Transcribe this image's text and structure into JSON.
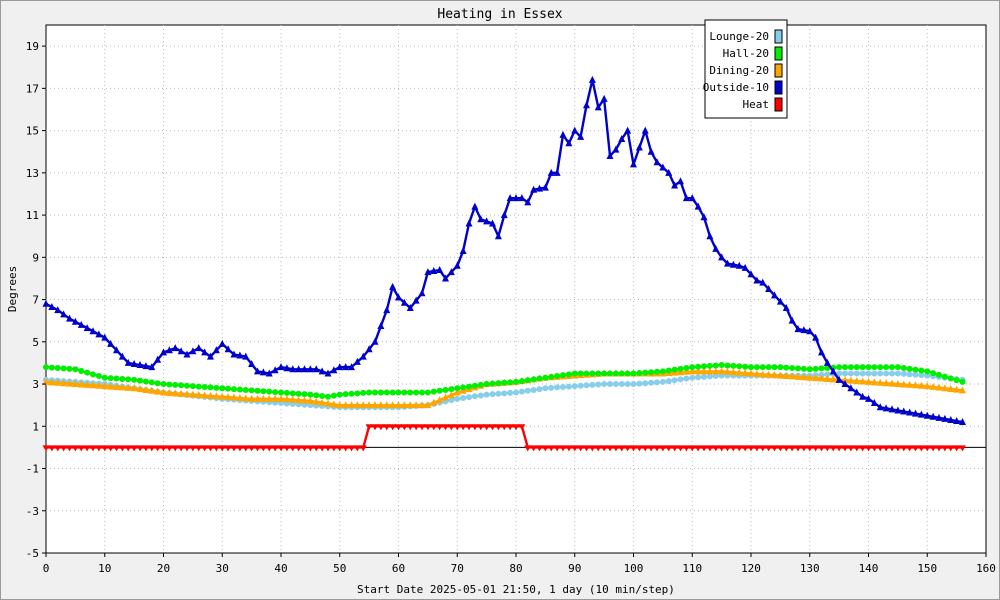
{
  "chart_data": {
    "type": "line",
    "title": "Heating in Essex",
    "xlabel": "Start Date 2025-05-01 21:50, 1 day (10 min/step)",
    "ylabel": "Degrees",
    "xlim": [
      0,
      160
    ],
    "ylim": [
      -5,
      20
    ],
    "xticks": [
      0,
      10,
      20,
      30,
      40,
      50,
      60,
      70,
      80,
      90,
      100,
      110,
      120,
      130,
      140,
      150,
      160
    ],
    "yticks": [
      -5,
      -3,
      -1,
      1,
      3,
      5,
      7,
      9,
      11,
      13,
      15,
      17,
      19
    ],
    "grid": true,
    "legend_position": "top-right",
    "series": [
      {
        "name": "Lounge-20",
        "color": "#87ceeb",
        "marker": "circle",
        "points": [
          [
            0,
            3.2
          ],
          [
            10,
            3.0
          ],
          [
            20,
            2.6
          ],
          [
            30,
            2.3
          ],
          [
            40,
            2.1
          ],
          [
            50,
            1.9
          ],
          [
            55,
            1.9
          ],
          [
            60,
            1.9
          ],
          [
            65,
            2.0
          ],
          [
            70,
            2.3
          ],
          [
            75,
            2.5
          ],
          [
            80,
            2.6
          ],
          [
            85,
            2.8
          ],
          [
            90,
            2.9
          ],
          [
            95,
            3.0
          ],
          [
            100,
            3.0
          ],
          [
            105,
            3.1
          ],
          [
            110,
            3.3
          ],
          [
            115,
            3.4
          ],
          [
            120,
            3.4
          ],
          [
            125,
            3.4
          ],
          [
            130,
            3.4
          ],
          [
            135,
            3.5
          ],
          [
            140,
            3.5
          ],
          [
            145,
            3.5
          ],
          [
            150,
            3.4
          ],
          [
            156,
            3.2
          ]
        ]
      },
      {
        "name": "Hall-20",
        "color": "#00ee00",
        "marker": "circle",
        "points": [
          [
            0,
            3.8
          ],
          [
            5,
            3.7
          ],
          [
            10,
            3.3
          ],
          [
            15,
            3.2
          ],
          [
            20,
            3.0
          ],
          [
            25,
            2.9
          ],
          [
            30,
            2.8
          ],
          [
            35,
            2.7
          ],
          [
            40,
            2.6
          ],
          [
            45,
            2.5
          ],
          [
            48,
            2.4
          ],
          [
            50,
            2.5
          ],
          [
            55,
            2.6
          ],
          [
            60,
            2.6
          ],
          [
            65,
            2.6
          ],
          [
            70,
            2.8
          ],
          [
            75,
            3.0
          ],
          [
            80,
            3.1
          ],
          [
            85,
            3.3
          ],
          [
            90,
            3.5
          ],
          [
            95,
            3.5
          ],
          [
            100,
            3.5
          ],
          [
            105,
            3.6
          ],
          [
            110,
            3.8
          ],
          [
            115,
            3.9
          ],
          [
            120,
            3.8
          ],
          [
            125,
            3.8
          ],
          [
            130,
            3.7
          ],
          [
            135,
            3.8
          ],
          [
            140,
            3.8
          ],
          [
            145,
            3.8
          ],
          [
            150,
            3.6
          ],
          [
            156,
            3.1
          ]
        ]
      },
      {
        "name": "Dining-20",
        "color": "#ffa500",
        "marker": "triangle",
        "points": [
          [
            0,
            3.1
          ],
          [
            5,
            3.0
          ],
          [
            10,
            2.9
          ],
          [
            15,
            2.8
          ],
          [
            20,
            2.6
          ],
          [
            25,
            2.5
          ],
          [
            30,
            2.4
          ],
          [
            35,
            2.3
          ],
          [
            40,
            2.3
          ],
          [
            45,
            2.2
          ],
          [
            50,
            2.0
          ],
          [
            55,
            2.0
          ],
          [
            60,
            2.0
          ],
          [
            65,
            2.0
          ],
          [
            70,
            2.6
          ],
          [
            75,
            3.0
          ],
          [
            80,
            3.1
          ],
          [
            85,
            3.3
          ],
          [
            90,
            3.4
          ],
          [
            95,
            3.5
          ],
          [
            100,
            3.5
          ],
          [
            105,
            3.5
          ],
          [
            110,
            3.6
          ],
          [
            115,
            3.6
          ],
          [
            120,
            3.5
          ],
          [
            125,
            3.4
          ],
          [
            130,
            3.3
          ],
          [
            135,
            3.2
          ],
          [
            140,
            3.1
          ],
          [
            145,
            3.0
          ],
          [
            150,
            2.9
          ],
          [
            156,
            2.7
          ]
        ]
      },
      {
        "name": "Outside-10",
        "color": "#0000cc",
        "marker": "triangle",
        "points": [
          [
            0,
            6.8
          ],
          [
            2,
            6.5
          ],
          [
            4,
            6.1
          ],
          [
            6,
            5.8
          ],
          [
            8,
            5.5
          ],
          [
            10,
            5.2
          ],
          [
            12,
            4.6
          ],
          [
            14,
            4.0
          ],
          [
            16,
            3.9
          ],
          [
            18,
            3.8
          ],
          [
            20,
            4.5
          ],
          [
            22,
            4.7
          ],
          [
            24,
            4.4
          ],
          [
            26,
            4.7
          ],
          [
            28,
            4.3
          ],
          [
            30,
            4.9
          ],
          [
            32,
            4.4
          ],
          [
            34,
            4.3
          ],
          [
            36,
            3.6
          ],
          [
            38,
            3.5
          ],
          [
            40,
            3.8
          ],
          [
            42,
            3.7
          ],
          [
            44,
            3.7
          ],
          [
            46,
            3.7
          ],
          [
            48,
            3.5
          ],
          [
            50,
            3.8
          ],
          [
            52,
            3.8
          ],
          [
            54,
            4.3
          ],
          [
            56,
            5.0
          ],
          [
            58,
            6.5
          ],
          [
            59,
            7.6
          ],
          [
            60,
            7.1
          ],
          [
            62,
            6.6
          ],
          [
            64,
            7.3
          ],
          [
            65,
            8.3
          ],
          [
            67,
            8.4
          ],
          [
            68,
            8.0
          ],
          [
            70,
            8.6
          ],
          [
            71,
            9.3
          ],
          [
            72,
            10.6
          ],
          [
            73,
            11.4
          ],
          [
            74,
            10.8
          ],
          [
            76,
            10.6
          ],
          [
            77,
            10.0
          ],
          [
            78,
            11.0
          ],
          [
            79,
            11.8
          ],
          [
            81,
            11.8
          ],
          [
            82,
            11.6
          ],
          [
            83,
            12.2
          ],
          [
            85,
            12.3
          ],
          [
            86,
            13.0
          ],
          [
            87,
            13.0
          ],
          [
            88,
            14.8
          ],
          [
            89,
            14.4
          ],
          [
            90,
            15.0
          ],
          [
            91,
            14.7
          ],
          [
            92,
            16.2
          ],
          [
            93,
            17.4
          ],
          [
            94,
            16.1
          ],
          [
            95,
            16.5
          ],
          [
            96,
            13.8
          ],
          [
            97,
            14.1
          ],
          [
            98,
            14.6
          ],
          [
            99,
            15.0
          ],
          [
            100,
            13.4
          ],
          [
            101,
            14.2
          ],
          [
            102,
            15.0
          ],
          [
            103,
            14.0
          ],
          [
            104,
            13.5
          ],
          [
            106,
            13.0
          ],
          [
            107,
            12.4
          ],
          [
            108,
            12.6
          ],
          [
            109,
            11.8
          ],
          [
            110,
            11.8
          ],
          [
            111,
            11.4
          ],
          [
            112,
            10.9
          ],
          [
            113,
            10.0
          ],
          [
            114,
            9.4
          ],
          [
            115,
            9.0
          ],
          [
            116,
            8.7
          ],
          [
            118,
            8.6
          ],
          [
            119,
            8.5
          ],
          [
            120,
            8.2
          ],
          [
            121,
            7.9
          ],
          [
            122,
            7.8
          ],
          [
            123,
            7.5
          ],
          [
            124,
            7.2
          ],
          [
            125,
            6.9
          ],
          [
            126,
            6.6
          ],
          [
            127,
            6.0
          ],
          [
            128,
            5.6
          ],
          [
            130,
            5.5
          ],
          [
            131,
            5.2
          ],
          [
            132,
            4.5
          ],
          [
            133,
            4.0
          ],
          [
            134,
            3.6
          ],
          [
            135,
            3.2
          ],
          [
            136,
            3.0
          ],
          [
            137,
            2.8
          ],
          [
            138,
            2.6
          ],
          [
            139,
            2.4
          ],
          [
            140,
            2.3
          ],
          [
            141,
            2.1
          ],
          [
            142,
            1.9
          ],
          [
            144,
            1.8
          ],
          [
            146,
            1.7
          ],
          [
            148,
            1.6
          ],
          [
            150,
            1.5
          ],
          [
            152,
            1.4
          ],
          [
            154,
            1.3
          ],
          [
            156,
            1.2
          ]
        ]
      },
      {
        "name": "Heat",
        "color": "#ff0000",
        "marker": "triangle-down",
        "points": [
          [
            0,
            0
          ],
          [
            54,
            0
          ],
          [
            55,
            1
          ],
          [
            81,
            1
          ],
          [
            82,
            0
          ],
          [
            156,
            0
          ]
        ]
      }
    ]
  }
}
